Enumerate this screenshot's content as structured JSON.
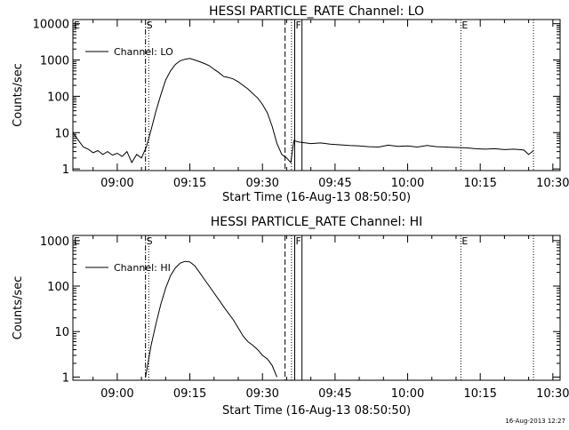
{
  "timestamp": "16-Aug-2013 12:27",
  "chart_data": [
    {
      "type": "line",
      "title": "HESSI PARTICLE_RATE Channel: LO",
      "xlabel": "Start Time (16-Aug-13 08:50:50)",
      "ylabel": "Counts/sec",
      "x_ticks": [
        "09:00",
        "09:15",
        "09:30",
        "09:45",
        "10:00",
        "10:15",
        "10:30"
      ],
      "y_ticks": [
        "1",
        "10",
        "100",
        "1000",
        "10000"
      ],
      "y_scale": "log",
      "xlim": [
        "08:50:50",
        "10:31:30"
      ],
      "ylim": [
        0.9,
        13000
      ],
      "legend": {
        "label": "Channel: LO",
        "position": "top-left"
      },
      "markers": [
        {
          "label": "E",
          "time": "08:50:50",
          "style": "dotted"
        },
        {
          "label": "S",
          "time": "09:05:50",
          "style": "dash-dot"
        },
        {
          "label": "",
          "time": "09:06:30",
          "style": "dotted"
        },
        {
          "label": "",
          "time": "09:34:40",
          "style": "dashed"
        },
        {
          "label": "",
          "time": "09:36:00",
          "style": "dotted"
        },
        {
          "label": "F",
          "time": "09:36:40",
          "style": "solid"
        },
        {
          "label": "",
          "time": "09:38:10",
          "style": "solid"
        },
        {
          "label": "E",
          "time": "10:11:00",
          "style": "dotted"
        },
        {
          "label": "",
          "time": "10:26:00",
          "style": "dotted"
        }
      ],
      "series": [
        {
          "x": [
            "08:50:50",
            "08:52:00",
            "08:53:00",
            "08:54:00",
            "08:55:00",
            "08:56:00",
            "08:57:00",
            "08:58:00",
            "08:59:00",
            "09:00:00",
            "09:01:00",
            "09:02:00",
            "09:03:00",
            "09:04:00",
            "09:05:00",
            "09:06:00",
            "09:07:00",
            "09:08:00",
            "09:09:00",
            "09:10:00",
            "09:11:00",
            "09:12:00",
            "09:13:00",
            "09:14:00",
            "09:15:00",
            "09:16:00",
            "09:17:00",
            "09:18:00",
            "09:19:00",
            "09:20:00",
            "09:21:00",
            "09:22:00",
            "09:23:00",
            "09:24:00",
            "09:25:00",
            "09:26:00",
            "09:27:00",
            "09:28:00",
            "09:29:00",
            "09:30:00",
            "09:31:00",
            "09:32:00",
            "09:33:00",
            "09:34:00",
            "09:35:00",
            "09:35:50",
            "09:36:30",
            "09:37:30",
            "09:40:00",
            "09:42:00",
            "09:44:00",
            "09:46:00",
            "09:48:00",
            "09:50:00",
            "09:52:00",
            "09:54:00",
            "09:56:00",
            "09:58:00",
            "10:00:00",
            "10:02:00",
            "10:04:00",
            "10:06:00",
            "10:08:00",
            "10:10:00",
            "10:12:00",
            "10:14:00",
            "10:16:00",
            "10:18:00",
            "10:20:00",
            "10:22:00",
            "10:24:00",
            "10:25:00",
            "10:26:00"
          ],
          "values": [
            10,
            6,
            4,
            3.5,
            2.8,
            3.2,
            2.5,
            3.0,
            2.4,
            2.7,
            2.2,
            3.0,
            1.5,
            2.5,
            2.0,
            4,
            12,
            40,
            110,
            280,
            500,
            750,
            950,
            1050,
            1100,
            1000,
            900,
            800,
            700,
            550,
            450,
            350,
            330,
            300,
            250,
            200,
            160,
            120,
            90,
            60,
            35,
            15,
            5,
            2.5,
            2.0,
            1.5,
            6.0,
            5.5,
            5.0,
            5.2,
            4.8,
            4.6,
            4.4,
            4.3,
            4.1,
            4.0,
            4.5,
            4.2,
            4.3,
            4.0,
            4.4,
            4.1,
            4.0,
            3.9,
            3.8,
            3.6,
            3.5,
            3.6,
            3.4,
            3.5,
            3.3,
            2.5,
            3.2
          ]
        }
      ]
    },
    {
      "type": "line",
      "title": "HESSI PARTICLE_RATE Channel: HI",
      "xlabel": "Start Time (16-Aug-13 08:50:50)",
      "ylabel": "Counts/sec",
      "x_ticks": [
        "09:00",
        "09:15",
        "09:30",
        "09:45",
        "10:00",
        "10:15",
        "10:30"
      ],
      "y_ticks": [
        "1",
        "10",
        "100",
        "1000"
      ],
      "y_scale": "log",
      "xlim": [
        "08:50:50",
        "10:31:30"
      ],
      "ylim": [
        0.85,
        1300
      ],
      "legend": {
        "label": "Channel: HI",
        "position": "top-left"
      },
      "markers": [
        {
          "label": "E",
          "time": "08:50:50",
          "style": "dotted"
        },
        {
          "label": "S",
          "time": "09:05:50",
          "style": "dash-dot"
        },
        {
          "label": "",
          "time": "09:06:30",
          "style": "dotted"
        },
        {
          "label": "",
          "time": "09:34:40",
          "style": "dashed"
        },
        {
          "label": "",
          "time": "09:36:00",
          "style": "dotted"
        },
        {
          "label": "F",
          "time": "09:36:40",
          "style": "solid"
        },
        {
          "label": "",
          "time": "09:38:10",
          "style": "solid"
        },
        {
          "label": "E",
          "time": "10:11:00",
          "style": "dotted"
        },
        {
          "label": "",
          "time": "10:26:00",
          "style": "dotted"
        }
      ],
      "series": [
        {
          "x": [
            "09:05:50",
            "09:06:30",
            "09:07:00",
            "09:08:00",
            "09:09:00",
            "09:10:00",
            "09:11:00",
            "09:12:00",
            "09:13:00",
            "09:14:00",
            "09:15:00",
            "09:16:00",
            "09:17:00",
            "09:18:00",
            "09:19:00",
            "09:20:00",
            "09:21:00",
            "09:22:00",
            "09:23:00",
            "09:24:00",
            "09:25:00",
            "09:26:00",
            "09:27:00",
            "09:28:00",
            "09:29:00",
            "09:30:00",
            "09:31:00",
            "09:32:00",
            "09:33:00"
          ],
          "values": [
            1,
            2.5,
            5,
            15,
            40,
            90,
            170,
            250,
            320,
            350,
            340,
            280,
            200,
            140,
            100,
            70,
            50,
            35,
            25,
            18,
            12,
            8,
            6,
            5,
            4,
            3,
            2.5,
            1.8,
            1.0
          ]
        }
      ]
    }
  ]
}
